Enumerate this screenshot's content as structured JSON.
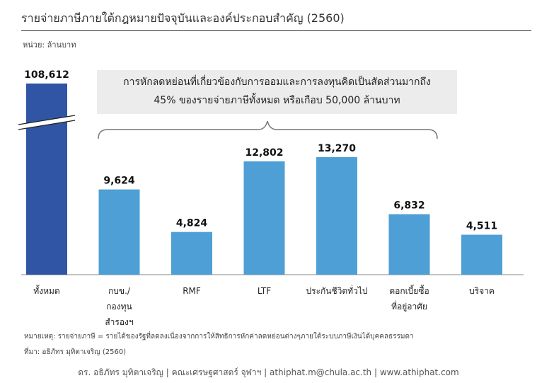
{
  "title": "รายจ่ายภาษีภายใต้กฎหมายปัจจุบันและองค์ประกอบสำคัญ (2560)",
  "unit_label": "หน่วย: ล้านบาท",
  "callout": {
    "line1": "การหักลดหย่อนที่เกี่ยวข้องกับการออมและการลงทุนคิดเป็นสัดส่วนมากถึง",
    "line2": "45% ของรายจ่ายภาษีทั้งหมด หรือเกือบ 50,000 ล้านบาท"
  },
  "chart_data": {
    "type": "bar",
    "categories": [
      [
        "ทั้งหมด"
      ],
      [
        "กบข./",
        "กองทุน",
        "สำรองฯ"
      ],
      [
        "RMF"
      ],
      [
        "LTF"
      ],
      [
        "ประกันชีวิตทั่วไป"
      ],
      [
        "ดอกเบี้ยซื้อ",
        "ที่อยู่อาศัย"
      ],
      [
        "บริจาค"
      ]
    ],
    "values": [
      108612,
      9624,
      4824,
      12802,
      13270,
      6832,
      4511
    ],
    "value_labels": [
      "108,612",
      "9,624",
      "4,824",
      "12,802",
      "13,270",
      "6,832",
      "4,511"
    ],
    "axis_break": true,
    "colors": {
      "total": "#2f55a4",
      "components": "#4e9fd5",
      "callout_bg": "#ececec"
    }
  },
  "notes": {
    "remark": "หมายเหตุ: รายจ่ายภาษี = รายได้ของรัฐที่ลดลงเนื่องจากการให้สิทธิการหักค่าลดหย่อนต่างๆภายใต้ระบบภาษีเงินได้บุคคลธรรมดา",
    "source": "ที่มา: อธิภัทร มุทิตาเจริญ (2560)"
  },
  "footer": "ดร. อธิภัทร มุทิตาเจริญ | คณะเศรษฐศาสตร์ จุฬาฯ | athiphat.m@chula.ac.th | www.athiphat.com"
}
